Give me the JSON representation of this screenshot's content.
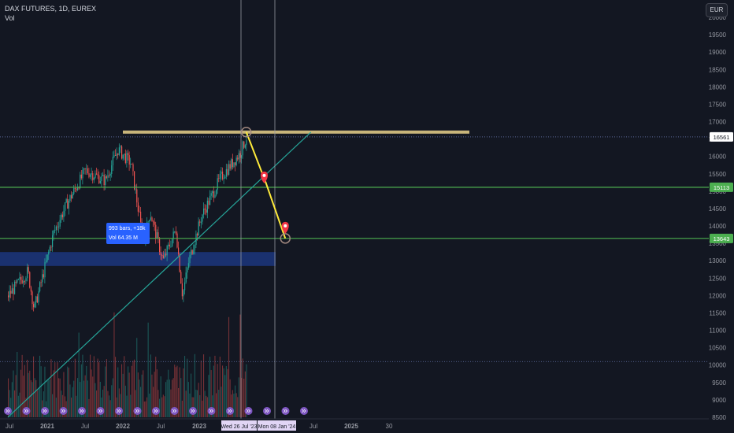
{
  "header": {
    "symbol_line": "DAX FUTURES, 1D, EUREX",
    "indicator": "Vol",
    "currency_button": "EUR"
  },
  "measure_tool": {
    "line1": "993 bars, +18k",
    "line2": "Vol 64.35 M"
  },
  "colors": {
    "background": "#131722",
    "up_candle": "#26a69a",
    "down_candle": "#ef5350",
    "horizontal_support": "#4caf50",
    "resistance_band": "#c8b57a",
    "trendline": "#26a69a",
    "projection_path": "#ffeb3b",
    "marker": "#f23645",
    "zone": "#2962ff"
  },
  "chart_data": {
    "type": "candlestick",
    "title": "DAX FUTURES, 1D, EUREX",
    "xlabel": "",
    "ylabel": "",
    "ylim": [
      8500,
      20000
    ],
    "y_ticks": [
      8500,
      9000,
      9500,
      10000,
      10500,
      11000,
      11500,
      12000,
      12500,
      13000,
      13500,
      14000,
      14500,
      15000,
      15500,
      16000,
      16500,
      17000,
      17500,
      18000,
      18500,
      19000,
      19500,
      20000
    ],
    "x_tick_labels": [
      "Jul",
      "2021",
      "Jul",
      "2022",
      "Jul",
      "2023",
      "Wed 26 Jul '23",
      "Mon 08 Jan '24",
      "Jul",
      "2025",
      "30"
    ],
    "price_tags": [
      {
        "value": 16561,
        "label": "16561",
        "kind": "last"
      },
      {
        "value": 15113,
        "label": "15113",
        "kind": "support"
      },
      {
        "value": 13643,
        "label": "13643",
        "kind": "support"
      }
    ],
    "price_path": [
      {
        "date": "2020-06",
        "close": 12000
      },
      {
        "date": "2020-09",
        "close": 12700
      },
      {
        "date": "2020-10",
        "close": 11600
      },
      {
        "date": "2021-01",
        "close": 13800
      },
      {
        "date": "2021-03",
        "close": 14600
      },
      {
        "date": "2021-06",
        "close": 15600
      },
      {
        "date": "2021-09",
        "close": 15300
      },
      {
        "date": "2021-11",
        "close": 16200
      },
      {
        "date": "2022-01",
        "close": 15800
      },
      {
        "date": "2022-03",
        "close": 13500
      },
      {
        "date": "2022-04",
        "close": 14400
      },
      {
        "date": "2022-06",
        "close": 13000
      },
      {
        "date": "2022-08",
        "close": 13900
      },
      {
        "date": "2022-09",
        "close": 12000
      },
      {
        "date": "2022-10",
        "close": 13000
      },
      {
        "date": "2022-12",
        "close": 14300
      },
      {
        "date": "2023-03",
        "close": 15400
      },
      {
        "date": "2023-06",
        "close": 16100
      },
      {
        "date": "2023-07",
        "close": 16561
      }
    ],
    "resistance_level": 16700,
    "support_levels": [
      15113,
      13643
    ],
    "demand_zone": [
      12850,
      13250
    ],
    "trendline": [
      {
        "date": "2020-06",
        "value": 8500
      },
      {
        "date": "2024-05",
        "value": 16700
      }
    ],
    "projection": [
      {
        "date": "2023-07",
        "value": 16700
      },
      {
        "date": "2023-10",
        "value": 15250
      },
      {
        "date": "2024-01",
        "value": 13643
      }
    ],
    "volume_axis_note": "Vol",
    "grid": false,
    "legend": "top-left"
  }
}
